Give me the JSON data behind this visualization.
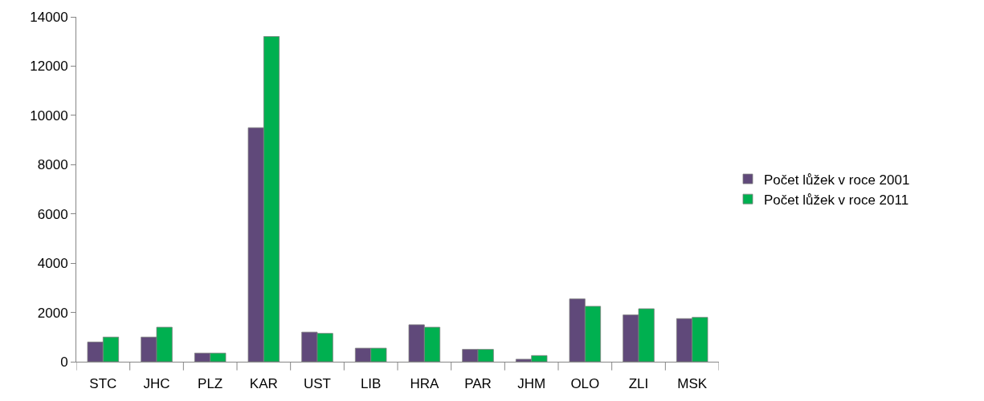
{
  "chart_data": {
    "type": "bar",
    "categories": [
      "STC",
      "JHC",
      "PLZ",
      "KAR",
      "UST",
      "LIB",
      "HRA",
      "PAR",
      "JHM",
      "OLO",
      "ZLI",
      "MSK"
    ],
    "series": [
      {
        "name": "Počet lůžek v roce 2001",
        "color": "#60497a",
        "values": [
          800,
          1000,
          350,
          9500,
          1200,
          550,
          1500,
          500,
          100,
          2550,
          1900,
          1750
        ]
      },
      {
        "name": "Počet lůžek v roce 2011",
        "color": "#00b050",
        "values": [
          1000,
          1400,
          350,
          13200,
          1150,
          550,
          1400,
          500,
          250,
          2250,
          2150,
          1800
        ]
      }
    ],
    "ylim": [
      0,
      14000
    ],
    "yticks": [
      0,
      2000,
      4000,
      6000,
      8000,
      10000,
      12000,
      14000
    ],
    "legend": "right"
  }
}
